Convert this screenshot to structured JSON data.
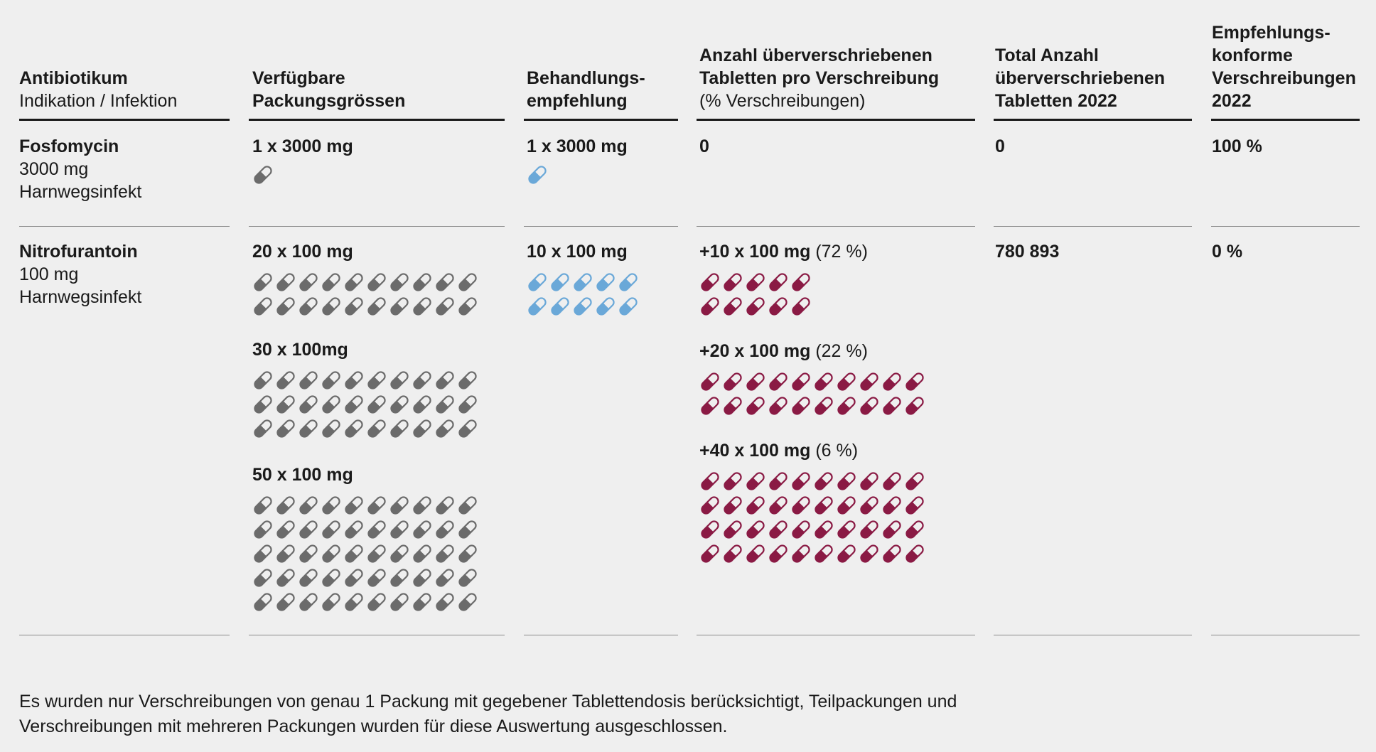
{
  "chart_data": {
    "type": "table",
    "columns": [
      {
        "title": "Antibiotikum",
        "subtitle": "Indikation / Infektion"
      },
      {
        "title": "Verfügbare\nPackungsgrössen",
        "subtitle": ""
      },
      {
        "title": "Behandlungs-\nempfehlung",
        "subtitle": ""
      },
      {
        "title": "Anzahl überverschriebenen\nTabletten pro Verschreibung",
        "subtitle": "(% Verschreibungen)"
      },
      {
        "title": "Total Anzahl\nüberverschriebenen\nTabletten 2022",
        "subtitle": ""
      },
      {
        "title": "Empfehlungs-\nkonforme\nVerschreibungen\n2022",
        "subtitle": ""
      }
    ],
    "rows": [
      {
        "drug": "Fosfomycin",
        "dose": "3000 mg",
        "indication": "Harnwegsinfekt",
        "packs": [
          {
            "label": "1 x 3000 mg",
            "tablets": 1
          }
        ],
        "recommendation": {
          "label": "1 x 3000 mg",
          "tablets": 1
        },
        "overprescribed": [
          {
            "label": "0",
            "share": "",
            "tablets": 0
          }
        ],
        "total": "0",
        "compliant": "100 %"
      },
      {
        "drug": "Nitrofurantoin",
        "dose": "100 mg",
        "indication": "Harnwegsinfekt",
        "packs": [
          {
            "label": "20 x 100 mg",
            "tablets": 20
          },
          {
            "label": "30 x 100mg",
            "tablets": 30
          },
          {
            "label": "50 x 100 mg",
            "tablets": 50
          }
        ],
        "recommendation": {
          "label": "10 x 100 mg",
          "tablets": 10
        },
        "overprescribed": [
          {
            "label": "+10 x 100 mg",
            "share": "(72 %)",
            "tablets": 10
          },
          {
            "label": "+20 x 100 mg",
            "share": "(22 %)",
            "tablets": 20
          },
          {
            "label": "+40 x 100 mg",
            "share": "(6 %)",
            "tablets": 40
          }
        ],
        "total": "780 893",
        "compliant": "0 %"
      }
    ]
  },
  "colors": {
    "available": "#6b6b6b",
    "recommended": "#6aa8d8",
    "overprescribed": "#8a1a44",
    "background": "#efefef"
  },
  "footnote": "Es wurden nur Verschreibungen von genau 1 Packung mit gegebener Tablettendosis berücksichtigt, Teilpackungen und Verschreibungen mit mehreren Packungen wurden für diese Auswertung ausgeschlossen."
}
